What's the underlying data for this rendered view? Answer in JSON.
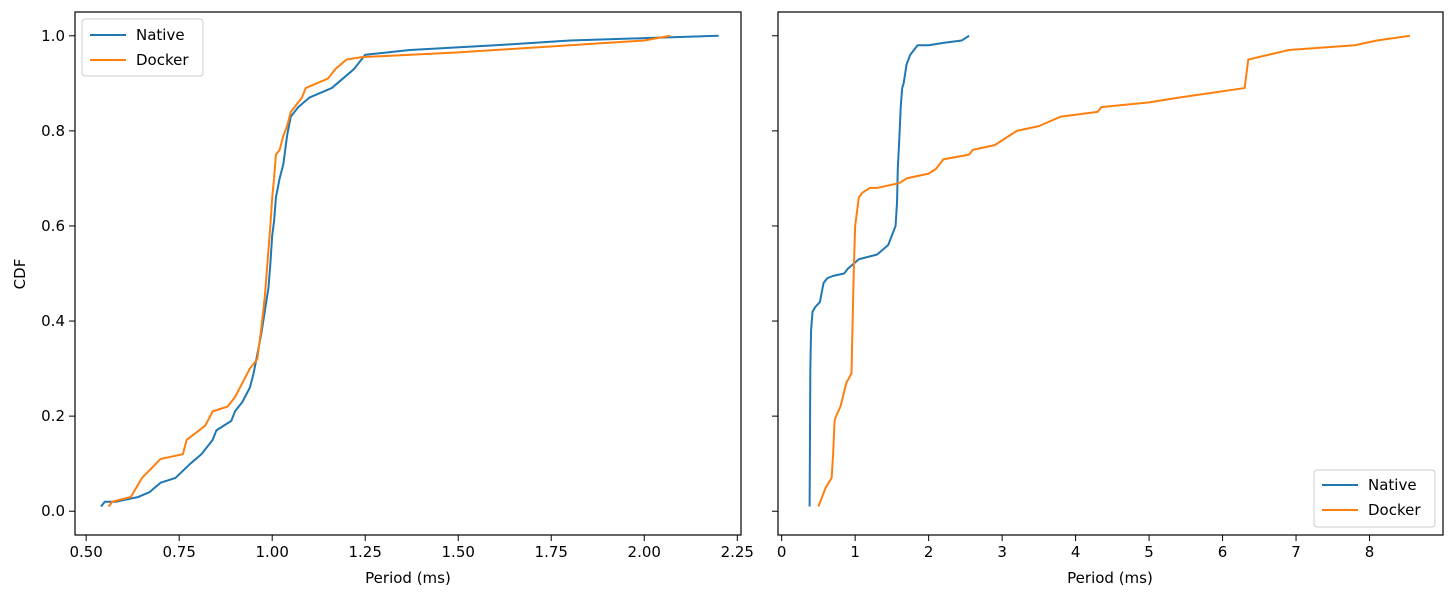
{
  "chart_data": [
    {
      "type": "line",
      "title": "",
      "xlabel": "Period (ms)",
      "ylabel": "CDF",
      "xlim": [
        0.47,
        2.26
      ],
      "ylim": [
        -0.05,
        1.05
      ],
      "xticks": [
        0.5,
        0.75,
        1.0,
        1.25,
        1.5,
        1.75,
        2.0,
        2.25
      ],
      "xtick_labels": [
        "0.50",
        "0.75",
        "1.00",
        "1.25",
        "1.50",
        "1.75",
        "2.00",
        "2.25"
      ],
      "yticks": [
        0.0,
        0.2,
        0.4,
        0.6,
        0.8,
        1.0
      ],
      "ytick_labels": [
        "0.0",
        "0.2",
        "0.4",
        "0.6",
        "0.8",
        "1.0"
      ],
      "grid": false,
      "legend_position": "top-left",
      "series": [
        {
          "name": "Native",
          "color": "#1f77b4",
          "x": [
            0.54,
            0.55,
            0.58,
            0.64,
            0.67,
            0.7,
            0.74,
            0.78,
            0.81,
            0.84,
            0.85,
            0.89,
            0.9,
            0.92,
            0.94,
            0.95,
            0.96,
            0.97,
            0.98,
            0.99,
            0.995,
            1.0,
            1.005,
            1.01,
            1.02,
            1.03,
            1.04,
            1.05,
            1.07,
            1.1,
            1.16,
            1.19,
            1.22,
            1.25,
            1.37,
            1.6,
            1.8,
            2.0,
            2.2
          ],
          "y": [
            0.01,
            0.02,
            0.02,
            0.03,
            0.04,
            0.06,
            0.07,
            0.1,
            0.12,
            0.15,
            0.17,
            0.19,
            0.21,
            0.23,
            0.26,
            0.29,
            0.33,
            0.37,
            0.42,
            0.47,
            0.52,
            0.58,
            0.61,
            0.66,
            0.7,
            0.73,
            0.79,
            0.83,
            0.85,
            0.87,
            0.89,
            0.91,
            0.93,
            0.96,
            0.97,
            0.98,
            0.99,
            0.995,
            1.0
          ]
        },
        {
          "name": "Docker",
          "color": "#ff7f0e",
          "x": [
            0.56,
            0.57,
            0.62,
            0.65,
            0.7,
            0.76,
            0.77,
            0.82,
            0.84,
            0.88,
            0.9,
            0.92,
            0.94,
            0.96,
            0.97,
            0.98,
            0.985,
            0.99,
            0.995,
            1.0,
            1.005,
            1.01,
            1.02,
            1.03,
            1.04,
            1.05,
            1.06,
            1.08,
            1.09,
            1.12,
            1.15,
            1.17,
            1.2,
            1.24,
            1.5,
            1.8,
            2.0,
            2.07
          ],
          "y": [
            0.01,
            0.02,
            0.03,
            0.07,
            0.11,
            0.12,
            0.15,
            0.18,
            0.21,
            0.22,
            0.24,
            0.27,
            0.3,
            0.32,
            0.38,
            0.45,
            0.5,
            0.55,
            0.6,
            0.66,
            0.7,
            0.75,
            0.76,
            0.79,
            0.81,
            0.84,
            0.85,
            0.87,
            0.89,
            0.9,
            0.91,
            0.93,
            0.95,
            0.955,
            0.965,
            0.98,
            0.99,
            1.0
          ]
        }
      ]
    },
    {
      "type": "line",
      "title": "",
      "xlabel": "Period (ms)",
      "ylabel": "",
      "xlim": [
        -0.05,
        9.0
      ],
      "ylim": [
        -0.05,
        1.05
      ],
      "xticks": [
        0,
        1,
        2,
        3,
        4,
        5,
        6,
        7,
        8
      ],
      "xtick_labels": [
        "0",
        "1",
        "2",
        "3",
        "4",
        "5",
        "6",
        "7",
        "8"
      ],
      "yticks": [
        0.0,
        0.2,
        0.4,
        0.6,
        0.8,
        1.0
      ],
      "ytick_labels": [],
      "grid": false,
      "legend_position": "lower-right",
      "series": [
        {
          "name": "Native",
          "color": "#1f77b4",
          "x": [
            0.38,
            0.385,
            0.39,
            0.4,
            0.42,
            0.46,
            0.52,
            0.57,
            0.62,
            0.7,
            0.85,
            0.9,
            1.05,
            1.3,
            1.45,
            1.55,
            1.57,
            1.58,
            1.6,
            1.62,
            1.64,
            1.66,
            1.7,
            1.75,
            1.85,
            2.0,
            2.2,
            2.45,
            2.55
          ],
          "y": [
            0.01,
            0.15,
            0.3,
            0.38,
            0.42,
            0.43,
            0.44,
            0.48,
            0.49,
            0.495,
            0.5,
            0.51,
            0.53,
            0.54,
            0.56,
            0.6,
            0.65,
            0.72,
            0.78,
            0.85,
            0.89,
            0.9,
            0.94,
            0.96,
            0.98,
            0.98,
            0.985,
            0.99,
            1.0
          ]
        },
        {
          "name": "Docker",
          "color": "#ff7f0e",
          "x": [
            0.5,
            0.6,
            0.68,
            0.7,
            0.72,
            0.74,
            0.8,
            0.88,
            0.95,
            0.96,
            0.98,
            1.0,
            1.05,
            1.1,
            1.2,
            1.3,
            1.6,
            1.7,
            2.0,
            2.1,
            2.2,
            2.55,
            2.6,
            2.9,
            3.1,
            3.2,
            3.5,
            3.8,
            4.3,
            4.35,
            5.0,
            5.4,
            6.3,
            6.35,
            6.9,
            7.8,
            8.1,
            8.55
          ],
          "y": [
            0.01,
            0.05,
            0.07,
            0.12,
            0.19,
            0.2,
            0.22,
            0.27,
            0.29,
            0.36,
            0.5,
            0.6,
            0.66,
            0.67,
            0.68,
            0.68,
            0.69,
            0.7,
            0.71,
            0.72,
            0.74,
            0.75,
            0.76,
            0.77,
            0.79,
            0.8,
            0.81,
            0.83,
            0.84,
            0.85,
            0.86,
            0.87,
            0.89,
            0.95,
            0.97,
            0.98,
            0.99,
            1.0
          ]
        }
      ]
    }
  ]
}
